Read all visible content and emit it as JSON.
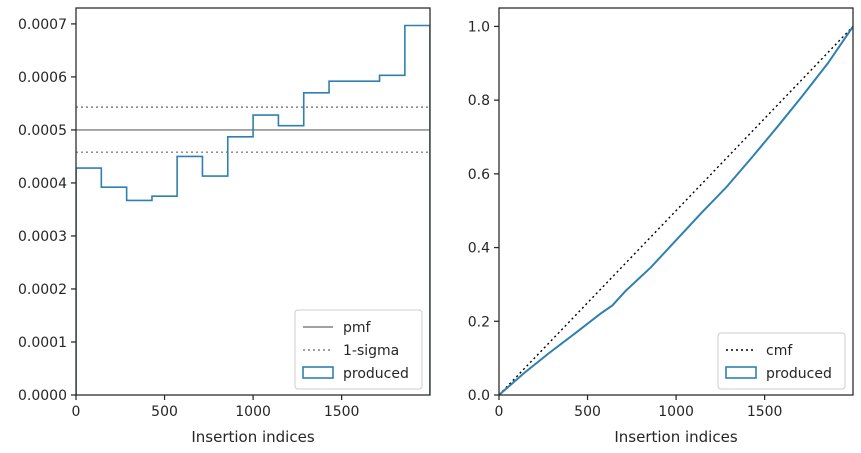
{
  "chart_data": [
    {
      "type": "line",
      "xlabel": "Insertion indices",
      "ylabel": "",
      "xlim": [
        0,
        1999
      ],
      "ylim": [
        0,
        0.00073
      ],
      "x_ticks": [
        0,
        500,
        1000,
        1500
      ],
      "x_tick_labels": [
        "0",
        "500",
        "1000",
        "1500"
      ],
      "y_ticks": [
        0,
        0.0001,
        0.0002,
        0.0003,
        0.0004,
        0.0005,
        0.0006,
        0.0007
      ],
      "y_tick_labels": [
        "0.0000",
        "0.0001",
        "0.0002",
        "0.0003",
        "0.0004",
        "0.0005",
        "0.0006",
        "0.0007"
      ],
      "grid": false,
      "legend_position": "lower-right",
      "series": [
        {
          "name": "pmf",
          "style": "solid",
          "color": "#808080",
          "y": 0.0005
        },
        {
          "name": "1-sigma",
          "style": "dotted",
          "color": "#808080",
          "y": [
            0.000458,
            0.000543
          ]
        },
        {
          "name": "produced",
          "style": "step",
          "color": "#2e80b0",
          "bin_edges": [
            0,
            143,
            286,
            429,
            571,
            714,
            857,
            1000,
            1143,
            1286,
            1429,
            1571,
            1714,
            1857,
            1999
          ],
          "values": [
            0.000428,
            0.000392,
            0.000367,
            0.000375,
            0.00045,
            0.000413,
            0.000487,
            0.000528,
            0.000508,
            0.00057,
            0.000592,
            0.000592,
            0.000603,
            0.000697
          ]
        }
      ]
    },
    {
      "type": "line",
      "xlabel": "Insertion indices",
      "ylabel": "",
      "xlim": [
        0,
        1999
      ],
      "ylim": [
        0,
        1.05
      ],
      "x_ticks": [
        0,
        500,
        1000,
        1500
      ],
      "x_tick_labels": [
        "0",
        "500",
        "1000",
        "1500"
      ],
      "y_ticks": [
        0,
        0.2,
        0.4,
        0.6,
        0.8,
        1.0
      ],
      "y_tick_labels": [
        "0.0",
        "0.2",
        "0.4",
        "0.6",
        "0.8",
        "1.0"
      ],
      "grid": false,
      "legend_position": "lower-right",
      "series": [
        {
          "name": "cmf",
          "style": "dotted",
          "color": "#000000",
          "x": [
            0,
            1999
          ],
          "y": [
            0,
            1.0
          ]
        },
        {
          "name": "produced",
          "style": "step",
          "color": "#2e80b0",
          "x": [
            0,
            143,
            286,
            429,
            571,
            640,
            714,
            857,
            1000,
            1143,
            1286,
            1429,
            1571,
            1714,
            1857,
            1999
          ],
          "y": [
            0,
            0.06,
            0.115,
            0.167,
            0.22,
            0.243,
            0.282,
            0.346,
            0.42,
            0.494,
            0.565,
            0.645,
            0.727,
            0.812,
            0.9,
            1.0
          ]
        }
      ]
    }
  ]
}
